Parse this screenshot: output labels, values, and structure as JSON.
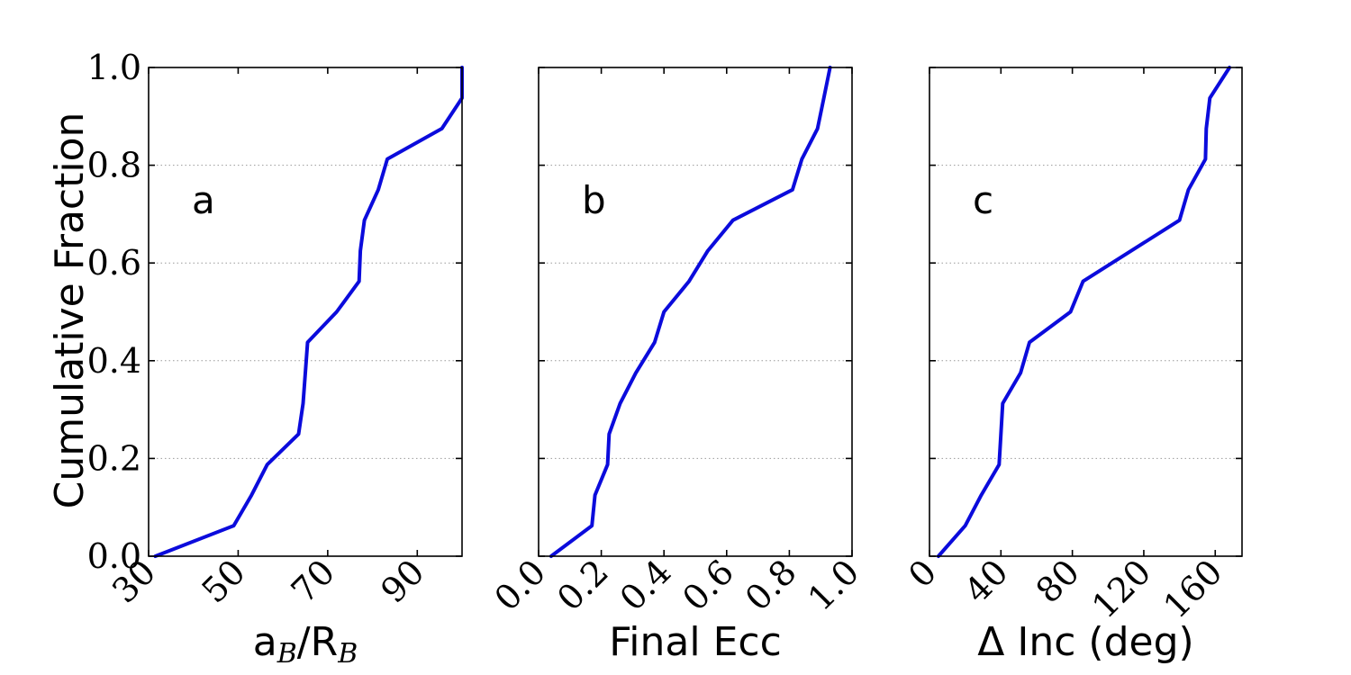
{
  "figure": {
    "ylabel": "Cumulative Fraction",
    "ytick_labels": [
      "0.0",
      "0.2",
      "0.4",
      "0.6",
      "0.8",
      "1.0"
    ]
  },
  "chart_data": [
    {
      "type": "line",
      "panel_label": "a",
      "xlabel": "a_B/R_B",
      "xlabel_parts": {
        "a": "a",
        "a_sub": "B",
        "sep": "/R",
        "r_sub": "B"
      },
      "xlim": [
        30,
        100
      ],
      "ylim": [
        0,
        1
      ],
      "xticks": [
        30,
        50,
        70,
        90
      ],
      "xtick_labels": [
        "30",
        "50",
        "70",
        "90"
      ],
      "grid": "y-dotted",
      "color": "#0b0bdc",
      "x": [
        31.5,
        49,
        53,
        56.5,
        63.5,
        64.5,
        65,
        65.5,
        72,
        77,
        77.3,
        78.2,
        81.3,
        83.3,
        95.5,
        100,
        100
      ],
      "y": [
        0.0,
        0.0625,
        0.125,
        0.1875,
        0.25,
        0.3125,
        0.375,
        0.4375,
        0.5,
        0.5625,
        0.625,
        0.6875,
        0.75,
        0.8125,
        0.875,
        0.9375,
        1.0
      ]
    },
    {
      "type": "line",
      "panel_label": "b",
      "xlabel": "Final Ecc",
      "xlim": [
        0,
        1
      ],
      "ylim": [
        0,
        1
      ],
      "xticks": [
        0.0,
        0.2,
        0.4,
        0.6,
        0.8,
        1.0
      ],
      "xtick_labels": [
        "0.0",
        "0.2",
        "0.4",
        "0.6",
        "0.8",
        "1.0"
      ],
      "grid": "y-dotted",
      "color": "#0b0bdc",
      "x": [
        0.04,
        0.17,
        0.18,
        0.22,
        0.225,
        0.26,
        0.31,
        0.37,
        0.4,
        0.48,
        0.54,
        0.62,
        0.81,
        0.84,
        0.89,
        0.91,
        0.93
      ],
      "y": [
        0.0,
        0.0625,
        0.125,
        0.1875,
        0.25,
        0.3125,
        0.375,
        0.4375,
        0.5,
        0.5625,
        0.625,
        0.6875,
        0.75,
        0.8125,
        0.875,
        0.9375,
        1.0
      ]
    },
    {
      "type": "line",
      "panel_label": "c",
      "xlabel": "Δ Inc (deg)",
      "xlim": [
        0,
        175
      ],
      "ylim": [
        0,
        1
      ],
      "xticks": [
        0,
        40,
        80,
        120,
        160
      ],
      "xtick_labels": [
        "0",
        "40",
        "80",
        "120",
        "160"
      ],
      "grid": "y-dotted",
      "color": "#0b0bdc",
      "x": [
        5,
        20,
        29,
        39,
        41,
        51,
        56,
        79,
        86,
        140,
        145,
        154.5,
        155,
        157,
        168
      ],
      "y": [
        0.0,
        0.0625,
        0.125,
        0.1875,
        0.3125,
        0.375,
        0.4375,
        0.5,
        0.5625,
        0.6875,
        0.75,
        0.8125,
        0.875,
        0.9375,
        1.0
      ]
    }
  ]
}
